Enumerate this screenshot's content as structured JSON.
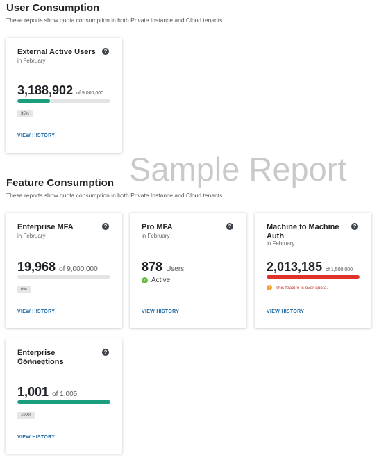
{
  "user_section": {
    "title": "User Consumption",
    "description": "These reports show quota consumption in both Private Instance and Cloud tenants."
  },
  "feature_section": {
    "title": "Feature Consumption",
    "description": "These reports show quota consumption in both Private Instance and Cloud tenants."
  },
  "watermark": "Sample Report",
  "colors": {
    "green": "#1a9e7e",
    "red": "#e0322d",
    "link": "#1d6aa5",
    "bar_bg": "#e3e4e6"
  },
  "cards": {
    "external_active_users": {
      "title": "External Active Users",
      "subtitle": "in February",
      "value": "3,188,902",
      "quota": "of 9,000,000",
      "percent_label": "35%",
      "fill_fraction": 0.35,
      "link": "VIEW HISTORY",
      "help": "?"
    },
    "enterprise_mfa": {
      "title": "Enterprise MFA",
      "subtitle": "in February",
      "value": "19,968",
      "quota": "of 9,000,000",
      "percent_label": "0%",
      "fill_fraction": 0.0,
      "link": "VIEW HISTORY",
      "help": "?"
    },
    "pro_mfa": {
      "title": "Pro MFA",
      "subtitle": "in February",
      "value": "878",
      "unit": "Users",
      "status": "Active",
      "link": "VIEW HISTORY",
      "help": "?"
    },
    "m2m_auth": {
      "title": "Machine to Machine Auth",
      "subtitle": "in February",
      "value": "2,013,185",
      "quota": "of 1,500,000",
      "fill_fraction": 1.0,
      "warning": "This feature is over quota.",
      "link": "VIEW HISTORY",
      "help": "?"
    },
    "enterprise_connections": {
      "title": "Enterprise Connections",
      "subtitle": "in February",
      "value": "1,001",
      "quota": "of 1,005",
      "percent_label": "100%",
      "fill_fraction": 1.0,
      "link": "VIEW HISTORY",
      "help": "?"
    }
  }
}
